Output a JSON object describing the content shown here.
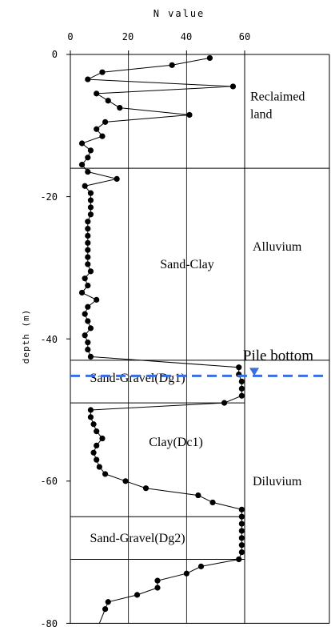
{
  "chart_data": {
    "type": "line",
    "title": "",
    "xlabel": "N value",
    "ylabel": "depth (m)",
    "xlim": [
      0,
      60
    ],
    "ylim": [
      -80,
      0
    ],
    "x_ticks": [
      "0",
      "20",
      "40",
      "60"
    ],
    "y_ticks": [
      "0",
      "-20",
      "-40",
      "-60",
      "-80"
    ],
    "grid": "vertical lines at x = 20, 40",
    "series": [
      {
        "name": "",
        "points": [
          [
            48,
            -0.5
          ],
          [
            35,
            -1.5
          ],
          [
            11,
            -2.5
          ],
          [
            6,
            -3.5
          ],
          [
            56,
            -4.5
          ],
          [
            9,
            -5.5
          ],
          [
            13,
            -6.5
          ],
          [
            17,
            -7.5
          ],
          [
            41,
            -8.5
          ],
          [
            12,
            -9.5
          ],
          [
            9,
            -10.5
          ],
          [
            11,
            -11.5
          ],
          [
            4,
            -12.5
          ],
          [
            7,
            -13.5
          ],
          [
            6,
            -14.5
          ],
          [
            4,
            -15.5
          ],
          [
            6,
            -16.5
          ],
          [
            16,
            -17.5
          ],
          [
            5,
            -18.5
          ],
          [
            7,
            -19.5
          ],
          [
            7,
            -20.5
          ],
          [
            7,
            -21.5
          ],
          [
            7,
            -22.5
          ],
          [
            6,
            -23.5
          ],
          [
            6,
            -24.5
          ],
          [
            6,
            -25.5
          ],
          [
            6,
            -26.5
          ],
          [
            6,
            -27.5
          ],
          [
            6,
            -28.5
          ],
          [
            6,
            -29.5
          ],
          [
            7,
            -30.5
          ],
          [
            5,
            -31.5
          ],
          [
            6,
            -32.5
          ],
          [
            4,
            -33.5
          ],
          [
            9,
            -34.5
          ],
          [
            6,
            -35.5
          ],
          [
            5,
            -36.5
          ],
          [
            6,
            -37.5
          ],
          [
            7,
            -38.5
          ],
          [
            5,
            -39.5
          ],
          [
            6,
            -40.5
          ],
          [
            6,
            -41.5
          ],
          [
            7,
            -42.5
          ],
          [
            58,
            -44
          ],
          [
            58,
            -45
          ],
          [
            59,
            -46
          ],
          [
            59,
            -47
          ],
          [
            59,
            -48
          ],
          [
            53,
            -49
          ],
          [
            7,
            -50
          ],
          [
            7,
            -51
          ],
          [
            8,
            -52
          ],
          [
            9,
            -53
          ],
          [
            11,
            -54
          ],
          [
            9,
            -55
          ],
          [
            8,
            -56
          ],
          [
            9,
            -57
          ],
          [
            10,
            -58
          ],
          [
            12,
            -59
          ],
          [
            19,
            -60
          ],
          [
            26,
            -61
          ],
          [
            44,
            -62
          ],
          [
            49,
            -63
          ],
          [
            59,
            -64
          ],
          [
            59,
            -65
          ],
          [
            59,
            -66
          ],
          [
            59,
            -67
          ],
          [
            59,
            -68
          ],
          [
            59,
            -69
          ],
          [
            59,
            -70
          ],
          [
            58,
            -71
          ],
          [
            45,
            -72
          ],
          [
            40,
            -73
          ],
          [
            30,
            -74
          ],
          [
            30,
            -75
          ],
          [
            23,
            -76
          ],
          [
            13,
            -77
          ],
          [
            12,
            -78
          ]
        ],
        "tail_line": [
          [
            12,
            -78
          ],
          [
            10,
            -80
          ]
        ]
      }
    ],
    "layer_boundaries": [
      -16,
      -43,
      -49,
      -65,
      -71
    ],
    "geology_boundaries": [
      -16,
      -43
    ],
    "layers": [
      {
        "name": "Sand-Gravel(Dg1)",
        "y": -45.5
      },
      {
        "name": "Clay(Dc1)",
        "y": -54.5
      },
      {
        "name": "Sand-Clay",
        "y": -29.5
      },
      {
        "name": "Sand-Gravel(Dg2)",
        "y": -68
      }
    ],
    "geology": [
      {
        "line1": "Reclaimed",
        "line2": "land",
        "y": -6.5
      },
      {
        "name": "Alluvium",
        "y": -27
      },
      {
        "name": "Diluvium",
        "y": -60
      }
    ],
    "pile_bottom": {
      "label": "Pile bottom",
      "depth": -45.2,
      "color": "#3a6fe0"
    }
  }
}
